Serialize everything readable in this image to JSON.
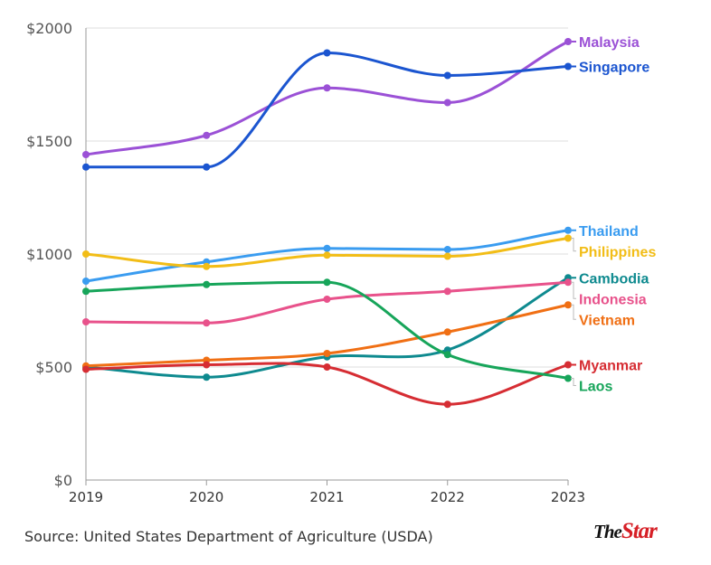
{
  "chart_data": {
    "type": "line",
    "title": "",
    "xlabel": "",
    "ylabel": "",
    "x": [
      "2019",
      "2020",
      "2021",
      "2022",
      "2023"
    ],
    "ylim": [
      0,
      2000
    ],
    "yticks": [
      0,
      500,
      1000,
      1500,
      2000
    ],
    "ytick_labels": [
      "$0",
      "$500",
      "$1000",
      "$1500",
      "$2000"
    ],
    "grid": true,
    "legend": "direct labels at right end of lines",
    "series": [
      {
        "name": "Malaysia",
        "color": "#9b51d6",
        "values": [
          1440,
          1525,
          1735,
          1670,
          1940
        ]
      },
      {
        "name": "Singapore",
        "color": "#1b55d0",
        "values": [
          1385,
          1385,
          1890,
          1790,
          1830
        ]
      },
      {
        "name": "Thailand",
        "color": "#3a9cf0",
        "values": [
          880,
          965,
          1025,
          1020,
          1105
        ]
      },
      {
        "name": "Philippines",
        "color": "#f2bd17",
        "values": [
          1000,
          945,
          995,
          990,
          1070
        ]
      },
      {
        "name": "Cambodia",
        "color": "#0e8a8f",
        "values": [
          500,
          455,
          545,
          575,
          895
        ]
      },
      {
        "name": "Indonesia",
        "color": "#e8528b",
        "values": [
          700,
          695,
          800,
          835,
          875
        ]
      },
      {
        "name": "Vietnam",
        "color": "#f06f14",
        "values": [
          505,
          530,
          560,
          655,
          775
        ]
      },
      {
        "name": "Myanmar",
        "color": "#d62d33",
        "values": [
          490,
          510,
          500,
          335,
          510
        ]
      },
      {
        "name": "Laos",
        "color": "#17a55a",
        "values": [
          835,
          865,
          875,
          555,
          450
        ]
      }
    ]
  },
  "footer": {
    "source": "Source: United States Department of Agriculture (USDA)",
    "logo_the": "The",
    "logo_star": "Star"
  }
}
